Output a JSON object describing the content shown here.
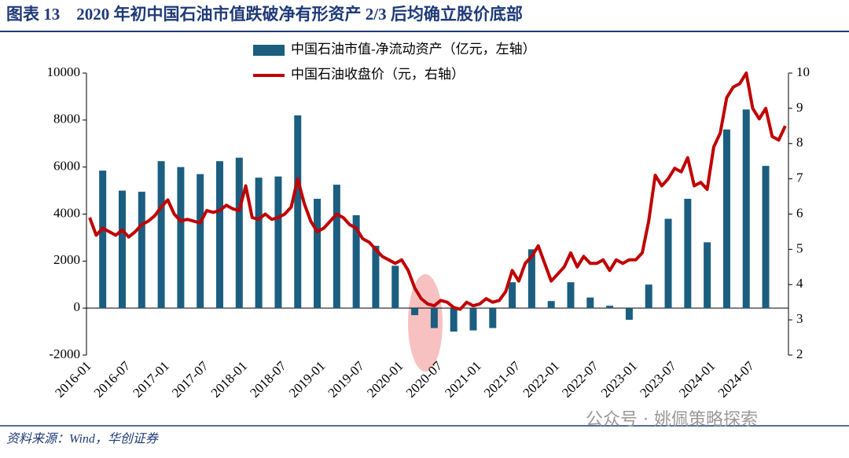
{
  "title": "图表 13　2020 年初中国石油市值跌破净有形资产 2/3 后均确立股价底部",
  "source": "资料来源：Wind，华创证券",
  "watermark": "公众号 · 姚佩策略探索",
  "chart_data": {
    "type": "bar-line",
    "categories": [
      "2016-01",
      null,
      null,
      null,
      null,
      null,
      "2016-07",
      null,
      null,
      null,
      null,
      null,
      "2017-01",
      null,
      null,
      null,
      null,
      null,
      "2017-07",
      null,
      null,
      null,
      null,
      null,
      "2018-01",
      null,
      null,
      null,
      null,
      null,
      "2018-07",
      null,
      null,
      null,
      null,
      null,
      "2019-01",
      null,
      null,
      null,
      null,
      null,
      "2019-07",
      null,
      null,
      null,
      null,
      null,
      "2020-01",
      null,
      null,
      null,
      null,
      null,
      "2020-07",
      null,
      null,
      null,
      null,
      null,
      "2021-01",
      null,
      null,
      null,
      null,
      null,
      "2021-07",
      null,
      null,
      null,
      null,
      null,
      "2022-01",
      null,
      null,
      null,
      null,
      null,
      "2022-07",
      null,
      null,
      null,
      null,
      null,
      "2023-01",
      null,
      null,
      null,
      null,
      null,
      "2023-07",
      null,
      null,
      null,
      null,
      null,
      "2024-01",
      null,
      null,
      null,
      null,
      null,
      "2024-07",
      null,
      null,
      null,
      null,
      null
    ],
    "series": [
      {
        "name": "中国石油市值-净流动资产（亿元，左轴）",
        "type": "bar",
        "color": "#1b5e80",
        "values": [
          null,
          null,
          5850,
          null,
          null,
          5000,
          null,
          null,
          4950,
          null,
          null,
          6250,
          null,
          null,
          6000,
          null,
          null,
          5700,
          null,
          null,
          6250,
          null,
          null,
          6400,
          null,
          null,
          5550,
          null,
          null,
          5600,
          null,
          null,
          8200,
          null,
          null,
          4650,
          null,
          null,
          5250,
          null,
          null,
          3950,
          null,
          null,
          2650,
          null,
          null,
          1800,
          null,
          null,
          -300,
          null,
          null,
          -850,
          null,
          null,
          -1000,
          null,
          null,
          -950,
          null,
          null,
          -850,
          null,
          null,
          1100,
          null,
          null,
          2500,
          null,
          null,
          300,
          null,
          null,
          1100,
          null,
          null,
          450,
          null,
          null,
          100,
          null,
          null,
          -500,
          null,
          null,
          1000,
          null,
          null,
          3800,
          null,
          null,
          4650,
          null,
          null,
          2800,
          null,
          null,
          7600,
          null,
          null,
          8450,
          null,
          null,
          6050,
          null,
          null,
          null
        ]
      },
      {
        "name": "中国石油收盘价（元，右轴）",
        "type": "line",
        "axis": "y2",
        "color": "#c00000",
        "values": [
          5.9,
          5.4,
          5.6,
          5.5,
          5.4,
          5.55,
          5.35,
          5.5,
          5.7,
          5.8,
          5.95,
          6.2,
          6.4,
          6.0,
          5.8,
          5.85,
          5.8,
          5.75,
          6.1,
          6.05,
          6.1,
          6.25,
          6.15,
          6.1,
          6.8,
          5.9,
          5.85,
          6.0,
          5.85,
          5.9,
          6.0,
          6.2,
          7.0,
          6.3,
          5.8,
          5.5,
          5.6,
          5.8,
          6.0,
          5.9,
          5.7,
          5.6,
          5.3,
          5.2,
          5.0,
          4.8,
          4.7,
          4.6,
          4.7,
          4.4,
          3.9,
          3.6,
          3.45,
          3.4,
          3.55,
          3.5,
          3.35,
          3.3,
          3.5,
          3.4,
          3.45,
          3.6,
          3.5,
          3.55,
          3.8,
          4.4,
          4.1,
          4.6,
          4.8,
          5.1,
          4.6,
          4.1,
          4.3,
          4.5,
          4.9,
          4.5,
          4.8,
          4.6,
          4.6,
          4.7,
          4.4,
          4.7,
          4.6,
          4.7,
          4.7,
          4.9,
          5.8,
          7.1,
          6.8,
          7.0,
          7.3,
          7.2,
          7.6,
          6.8,
          6.9,
          6.7,
          7.9,
          8.3,
          9.3,
          9.6,
          9.7,
          10.0,
          9.0,
          8.7,
          9.0,
          8.2,
          8.1,
          8.5
        ]
      }
    ],
    "ylim": [
      -2000,
      10000
    ],
    "yticks": [
      -2000,
      0,
      2000,
      4000,
      6000,
      8000,
      10000
    ],
    "y2lim": [
      2,
      10
    ],
    "y2ticks": [
      2,
      3,
      4,
      5,
      6,
      7,
      8,
      9,
      10
    ],
    "legend": "top"
  }
}
